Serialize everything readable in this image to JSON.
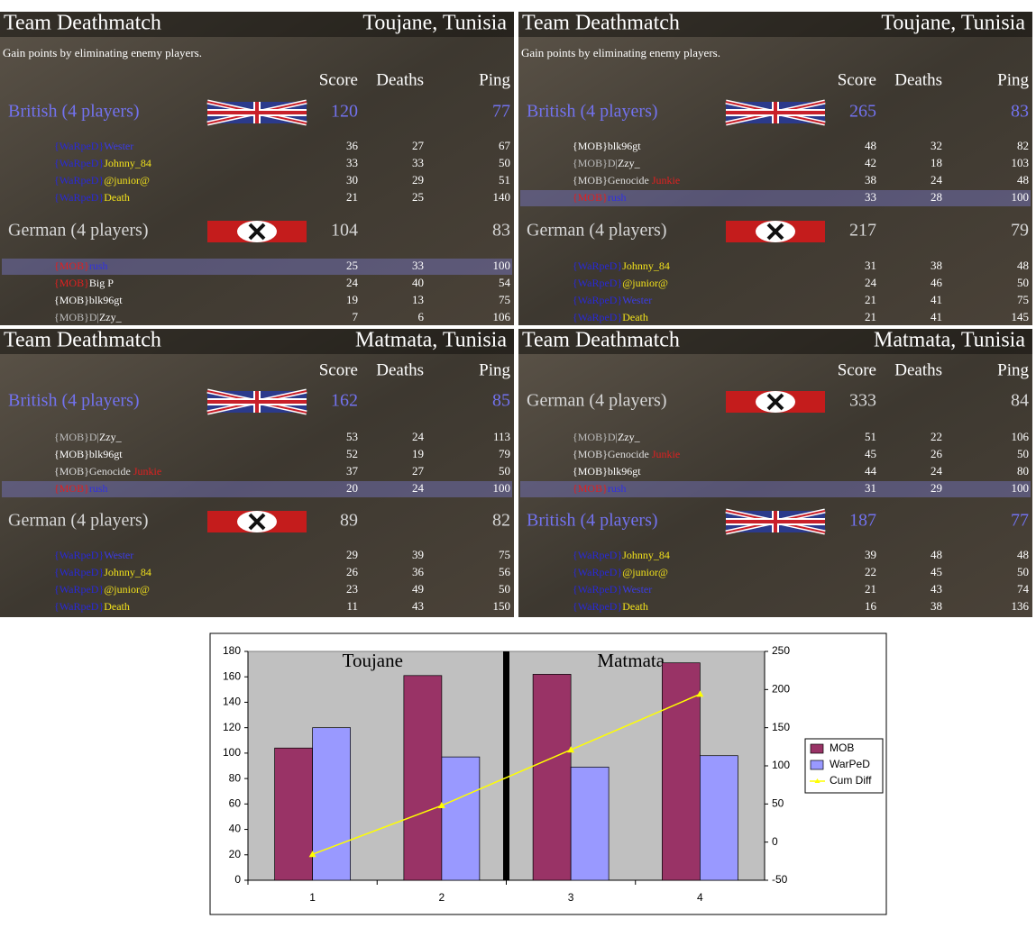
{
  "panels": [
    {
      "title": "Team Deathmatch",
      "map": "Toujane, Tunisia",
      "subtitle": "Gain points by eliminating enemy players.",
      "headers": [
        "Score",
        "Deaths",
        "Ping"
      ],
      "teams": [
        {
          "name": "British (4 players)",
          "flag": "uk",
          "color": "#7272ee",
          "score": 120,
          "ping": 77,
          "players": [
            {
              "name": [
                [
                  "{WaRpeD}",
                  "#2929d6"
                ],
                [
                  "Wester",
                  "#3b3be6"
                ]
              ],
              "score": 36,
              "deaths": 27,
              "ping": 67
            },
            {
              "name": [
                [
                  "{WaRpeD}",
                  "#2929d6"
                ],
                [
                  "Johnny_84",
                  "#f2e21c"
                ]
              ],
              "score": 33,
              "deaths": 33,
              "ping": 50
            },
            {
              "name": [
                [
                  "{WaRpeD}",
                  "#2929d6"
                ],
                [
                  "@junior@",
                  "#f2e21c"
                ]
              ],
              "score": 30,
              "deaths": 29,
              "ping": 51
            },
            {
              "name": [
                [
                  "{WaRpeD}",
                  "#2929d6"
                ],
                [
                  "Death",
                  "#f2e21c"
                ]
              ],
              "score": 21,
              "deaths": 25,
              "ping": 140
            }
          ]
        },
        {
          "name": "German (4 players)",
          "flag": "de",
          "color": "#d6d6d6",
          "score": 104,
          "ping": 83,
          "players": [
            {
              "name": [
                [
                  "{MOB}",
                  "#e02020"
                ],
                [
                  "rush",
                  "#3030e0"
                ]
              ],
              "score": 25,
              "deaths": 33,
              "ping": 100,
              "highlight": true
            },
            {
              "name": [
                [
                  "{MOB}",
                  "#e02020"
                ],
                [
                  "Big P",
                  "#ffffff"
                ]
              ],
              "score": 24,
              "deaths": 40,
              "ping": 54
            },
            {
              "name": [
                [
                  "{MOB}",
                  "#ffffff"
                ],
                [
                  "blk96gt",
                  "#ffffff"
                ]
              ],
              "score": 19,
              "deaths": 13,
              "ping": 75
            },
            {
              "name": [
                [
                  "{MOB}D|",
                  "#bdbdbd"
                ],
                [
                  "Zzy_",
                  "#ffffff"
                ]
              ],
              "score": 7,
              "deaths": 6,
              "ping": 106
            }
          ]
        }
      ]
    },
    {
      "title": "Team Deathmatch",
      "map": "Toujane, Tunisia",
      "subtitle": "Gain points by eliminating enemy players.",
      "headers": [
        "Score",
        "Deaths",
        "Ping"
      ],
      "teams": [
        {
          "name": "British (4 players)",
          "flag": "uk",
          "color": "#7272ee",
          "score": 265,
          "ping": 83,
          "players": [
            {
              "name": [
                [
                  "{MOB}",
                  "#ffffff"
                ],
                [
                  "blk96gt",
                  "#ffffff"
                ]
              ],
              "score": 48,
              "deaths": 32,
              "ping": 82
            },
            {
              "name": [
                [
                  "{MOB}D|",
                  "#bdbdbd"
                ],
                [
                  "Zzy_",
                  "#ffffff"
                ]
              ],
              "score": 42,
              "deaths": 18,
              "ping": 103
            },
            {
              "name": [
                [
                  "{MOB}Genocide ",
                  "#dddddd"
                ],
                [
                  "Junkie",
                  "#e02020"
                ]
              ],
              "score": 38,
              "deaths": 24,
              "ping": 48
            },
            {
              "name": [
                [
                  "{MOB}",
                  "#e02020"
                ],
                [
                  "rush",
                  "#3030e0"
                ]
              ],
              "score": 33,
              "deaths": 28,
              "ping": 100,
              "highlight": true
            }
          ]
        },
        {
          "name": "German (4 players)",
          "flag": "de",
          "color": "#d6d6d6",
          "score": 217,
          "ping": 79,
          "players": [
            {
              "name": [
                [
                  "{WaRpeD}",
                  "#2929d6"
                ],
                [
                  "Johnny_84",
                  "#f2e21c"
                ]
              ],
              "score": 31,
              "deaths": 38,
              "ping": 48
            },
            {
              "name": [
                [
                  "{WaRpeD}",
                  "#2929d6"
                ],
                [
                  "@junior@",
                  "#f2e21c"
                ]
              ],
              "score": 24,
              "deaths": 46,
              "ping": 50
            },
            {
              "name": [
                [
                  "{WaRpeD}",
                  "#2929d6"
                ],
                [
                  "Wester",
                  "#3b3be6"
                ]
              ],
              "score": 21,
              "deaths": 41,
              "ping": 75
            },
            {
              "name": [
                [
                  "{WaRpeD}",
                  "#2929d6"
                ],
                [
                  "Death",
                  "#f2e21c"
                ]
              ],
              "score": 21,
              "deaths": 41,
              "ping": 145
            }
          ]
        }
      ]
    },
    {
      "title": "Team Deathmatch",
      "map": "Matmata, Tunisia",
      "headers": [
        "Score",
        "Deaths",
        "Ping"
      ],
      "teams": [
        {
          "name": "British (4 players)",
          "flag": "uk",
          "color": "#7272ee",
          "score": 162,
          "ping": 85,
          "players": [
            {
              "name": [
                [
                  "{MOB}D|",
                  "#bdbdbd"
                ],
                [
                  "Zzy_",
                  "#ffffff"
                ]
              ],
              "score": 53,
              "deaths": 24,
              "ping": 113
            },
            {
              "name": [
                [
                  "{MOB}",
                  "#ffffff"
                ],
                [
                  "blk96gt",
                  "#ffffff"
                ]
              ],
              "score": 52,
              "deaths": 19,
              "ping": 79
            },
            {
              "name": [
                [
                  "{MOB}Genocide ",
                  "#dddddd"
                ],
                [
                  "Junkie",
                  "#e02020"
                ]
              ],
              "score": 37,
              "deaths": 27,
              "ping": 50
            },
            {
              "name": [
                [
                  "{MOB}",
                  "#e02020"
                ],
                [
                  "rush",
                  "#3030e0"
                ]
              ],
              "score": 20,
              "deaths": 24,
              "ping": 100,
              "highlight": true
            }
          ]
        },
        {
          "name": "German (4 players)",
          "flag": "de",
          "color": "#d6d6d6",
          "score": 89,
          "ping": 82,
          "players": [
            {
              "name": [
                [
                  "{WaRpeD}",
                  "#2929d6"
                ],
                [
                  "Wester",
                  "#3b3be6"
                ]
              ],
              "score": 29,
              "deaths": 39,
              "ping": 75
            },
            {
              "name": [
                [
                  "{WaRpeD}",
                  "#2929d6"
                ],
                [
                  "Johnny_84",
                  "#f2e21c"
                ]
              ],
              "score": 26,
              "deaths": 36,
              "ping": 56
            },
            {
              "name": [
                [
                  "{WaRpeD}",
                  "#2929d6"
                ],
                [
                  "@junior@",
                  "#f2e21c"
                ]
              ],
              "score": 23,
              "deaths": 49,
              "ping": 50
            },
            {
              "name": [
                [
                  "{WaRpeD}",
                  "#2929d6"
                ],
                [
                  "Death",
                  "#f2e21c"
                ]
              ],
              "score": 11,
              "deaths": 43,
              "ping": 150
            }
          ]
        }
      ]
    },
    {
      "title": "Team Deathmatch",
      "map": "Matmata, Tunisia",
      "headers": [
        "Score",
        "Deaths",
        "Ping"
      ],
      "teams": [
        {
          "name": "German (4 players)",
          "flag": "de",
          "color": "#d6d6d6",
          "score": 333,
          "ping": 84,
          "players": [
            {
              "name": [
                [
                  "{MOB}D|",
                  "#bdbdbd"
                ],
                [
                  "Zzy_",
                  "#ffffff"
                ]
              ],
              "score": 51,
              "deaths": 22,
              "ping": 106
            },
            {
              "name": [
                [
                  "{MOB}Genocide ",
                  "#dddddd"
                ],
                [
                  "Junkie",
                  "#e02020"
                ]
              ],
              "score": 45,
              "deaths": 26,
              "ping": 50
            },
            {
              "name": [
                [
                  "{MOB}",
                  "#ffffff"
                ],
                [
                  "blk96gt",
                  "#ffffff"
                ]
              ],
              "score": 44,
              "deaths": 24,
              "ping": 80
            },
            {
              "name": [
                [
                  "{MOB}",
                  "#e02020"
                ],
                [
                  "rush",
                  "#3030e0"
                ]
              ],
              "score": 31,
              "deaths": 29,
              "ping": 100,
              "highlight": true
            }
          ]
        },
        {
          "name": "British (4 players)",
          "flag": "uk",
          "color": "#7272ee",
          "score": 187,
          "ping": 77,
          "players": [
            {
              "name": [
                [
                  "{WaRpeD}",
                  "#2929d6"
                ],
                [
                  "Johnny_84",
                  "#f2e21c"
                ]
              ],
              "score": 39,
              "deaths": 48,
              "ping": 48
            },
            {
              "name": [
                [
                  "{WaRpeD}",
                  "#2929d6"
                ],
                [
                  "@junior@",
                  "#f2e21c"
                ]
              ],
              "score": 22,
              "deaths": 45,
              "ping": 50
            },
            {
              "name": [
                [
                  "{WaRpeD}",
                  "#2929d6"
                ],
                [
                  "Wester",
                  "#3b3be6"
                ]
              ],
              "score": 21,
              "deaths": 43,
              "ping": 74
            },
            {
              "name": [
                [
                  "{WaRpeD}",
                  "#2929d6"
                ],
                [
                  "Death",
                  "#f2e21c"
                ]
              ],
              "score": 16,
              "deaths": 38,
              "ping": 136
            }
          ]
        }
      ]
    }
  ],
  "chart_data": {
    "type": "bar",
    "categories": [
      "1",
      "2",
      "3",
      "4"
    ],
    "annotations": [
      "Toujane",
      "Matmata"
    ],
    "series": [
      {
        "name": "MOB",
        "color": "#993366",
        "values": [
          104,
          161,
          162,
          171
        ]
      },
      {
        "name": "WarPeD",
        "color": "#9999ff",
        "values": [
          120,
          97,
          89,
          98
        ]
      },
      {
        "name": "Cum Diff",
        "type": "line",
        "axis": "y2",
        "color": "#ffff00",
        "values": [
          -16,
          48,
          121,
          194
        ]
      }
    ],
    "ylim": [
      0,
      180
    ],
    "yticks": [
      0,
      20,
      40,
      60,
      80,
      100,
      120,
      140,
      160,
      180
    ],
    "y2lim": [
      -50,
      250
    ],
    "y2ticks": [
      -50,
      0,
      50,
      100,
      150,
      200,
      250
    ],
    "legend": "right",
    "grid": false
  }
}
